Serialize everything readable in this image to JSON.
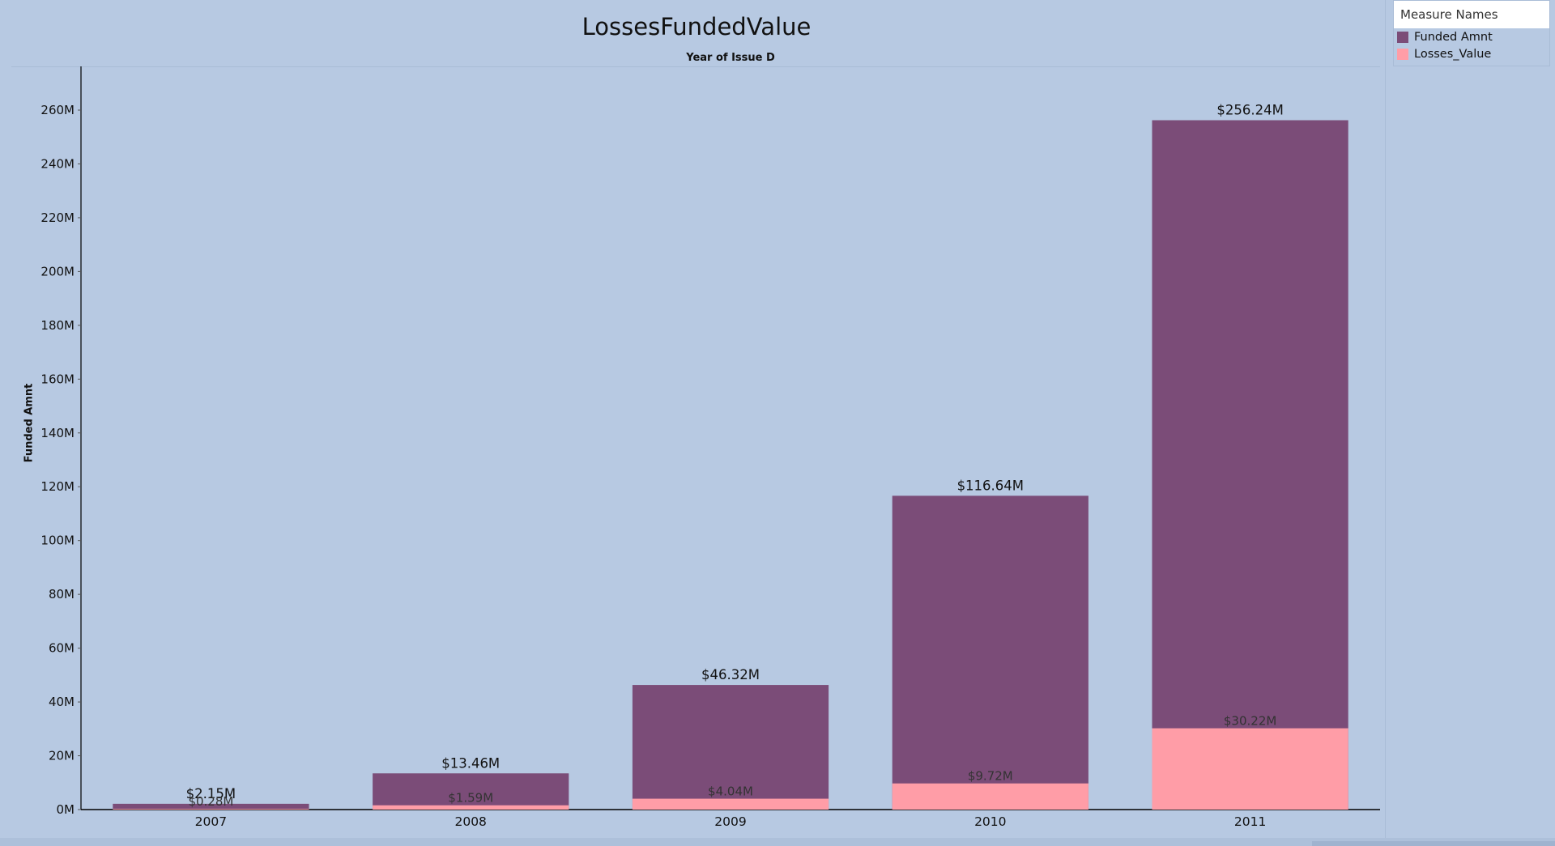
{
  "chart_data": {
    "type": "bar",
    "stacked": false,
    "title": "LossesFundedValue",
    "column_header": "Year of Issue D",
    "ylabel": "Funded Amnt",
    "categories": [
      "2007",
      "2008",
      "2009",
      "2010",
      "2011"
    ],
    "ylim": [
      0,
      275
    ],
    "y_ticks": [
      0,
      20,
      40,
      60,
      80,
      100,
      120,
      140,
      160,
      180,
      200,
      220,
      240,
      260
    ],
    "y_tick_labels": [
      "0M",
      "20M",
      "40M",
      "60M",
      "80M",
      "100M",
      "120M",
      "140M",
      "160M",
      "180M",
      "200M",
      "220M",
      "240M",
      "260M"
    ],
    "y_unit": "M",
    "grid": false,
    "legend_position": "top-right",
    "series": [
      {
        "name": "Funded Amnt",
        "color": "#7b4c78",
        "values": [
          2.15,
          13.46,
          46.32,
          116.64,
          256.24
        ],
        "labels": [
          "$2.15M",
          "$13.46M",
          "$46.32M",
          "$116.64M",
          "$256.24M"
        ]
      },
      {
        "name": "Losses_Value",
        "color": "#ff9da7",
        "values": [
          0.28,
          1.59,
          4.04,
          9.72,
          30.22
        ],
        "labels": [
          "$0.28M",
          "$1.59M",
          "$4.04M",
          "$9.72M",
          "$30.22M"
        ]
      }
    ]
  },
  "legend": {
    "title": "Measure Names",
    "items": [
      {
        "label": "Funded Amnt",
        "color": "#7b4c78"
      },
      {
        "label": "Losses_Value",
        "color": "#ff9da7"
      }
    ]
  }
}
